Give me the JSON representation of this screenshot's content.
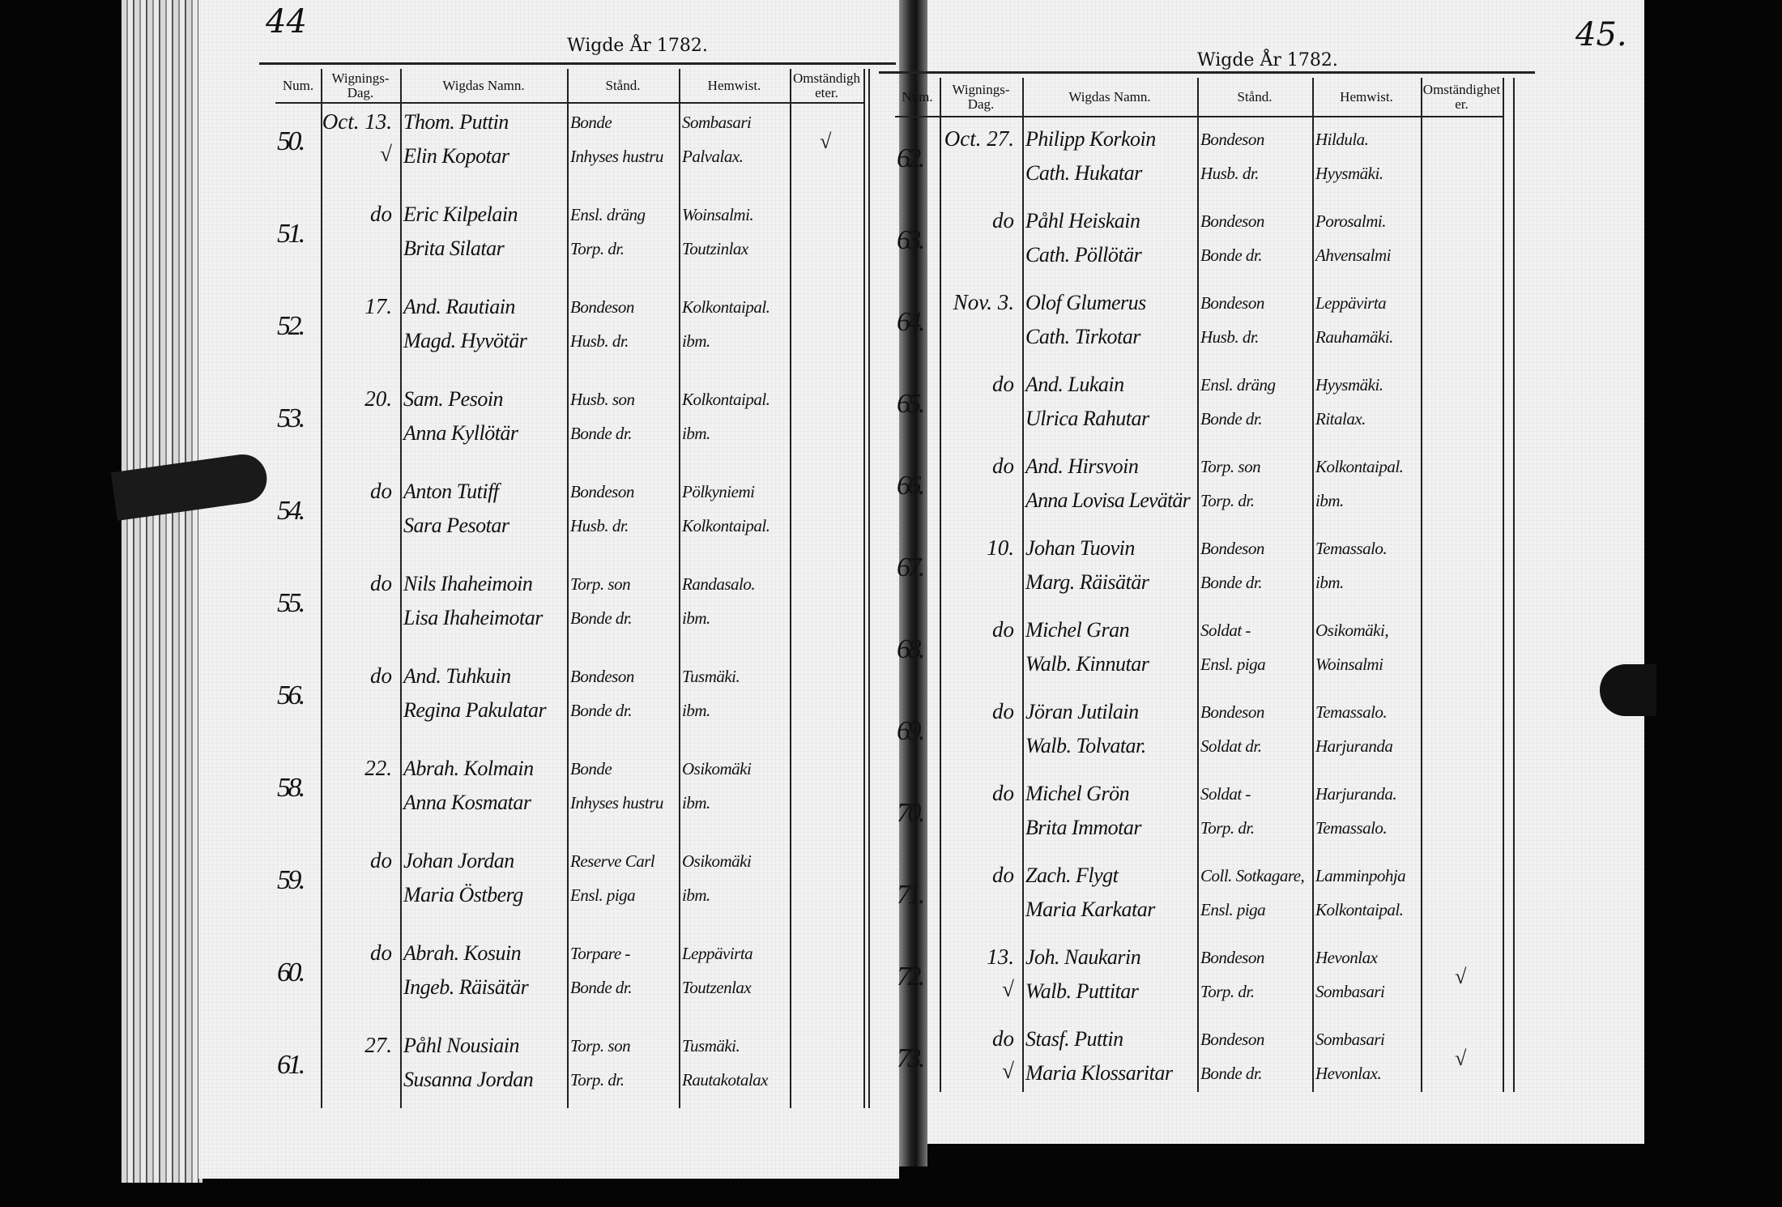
{
  "left_page": {
    "page_number": "44",
    "title": "Wigde År 1782.",
    "headers": {
      "num": "Num.",
      "dag": "Wignings-Dag.",
      "namn": "Wigdas Namn.",
      "stand": "Stånd.",
      "hemwist": "Hemwist.",
      "omst": "Omständigheter."
    },
    "entries": [
      {
        "num": "50.",
        "dag": "Oct. 13.",
        "check": "√",
        "names": [
          "Thom. Puttin",
          "Elin Kopotar"
        ],
        "stand": [
          "Bonde",
          "Inhyses hustru"
        ],
        "hemwist": [
          "Sombasari",
          "Palvalax."
        ],
        "omst": "√"
      },
      {
        "num": "51.",
        "dag": "do",
        "check": "",
        "names": [
          "Eric Kilpelain",
          "Brita Silatar"
        ],
        "stand": [
          "Ensl. dräng",
          "Torp. dr."
        ],
        "hemwist": [
          "Woinsalmi.",
          "Toutzinlax"
        ],
        "omst": ""
      },
      {
        "num": "52.",
        "dag": "17.",
        "check": "",
        "names": [
          "And. Rautiain",
          "Magd. Hyvötär"
        ],
        "stand": [
          "Bondeson",
          "Husb. dr."
        ],
        "hemwist": [
          "Kolkontaipal.",
          "ibm."
        ],
        "omst": ""
      },
      {
        "num": "53.",
        "dag": "20.",
        "check": "",
        "names": [
          "Sam. Pesoin",
          "Anna Kyllötär"
        ],
        "stand": [
          "Husb. son",
          "Bonde dr."
        ],
        "hemwist": [
          "Kolkontaipal.",
          "ibm."
        ],
        "omst": ""
      },
      {
        "num": "54.",
        "dag": "do",
        "check": "",
        "names": [
          "Anton Tutiff",
          "Sara Pesotar"
        ],
        "stand": [
          "Bondeson",
          "Husb. dr."
        ],
        "hemwist": [
          "Pölkyniemi",
          "Kolkontaipal."
        ],
        "omst": ""
      },
      {
        "num": "55.",
        "dag": "do",
        "check": "",
        "names": [
          "Nils Ihaheimoin",
          "Lisa Ihaheimotar"
        ],
        "stand": [
          "Torp. son",
          "Bonde dr."
        ],
        "hemwist": [
          "Randasalo.",
          "ibm."
        ],
        "omst": ""
      },
      {
        "num": "56.",
        "dag": "do",
        "check": "",
        "names": [
          "And. Tuhkuin",
          "Regina Pakulatar"
        ],
        "stand": [
          "Bondeson",
          "Bonde dr."
        ],
        "hemwist": [
          "Tusmäki.",
          "ibm."
        ],
        "omst": ""
      },
      {
        "num": "58.",
        "dag": "22.",
        "check": "",
        "names": [
          "Abrah. Kolmain",
          "Anna Kosmatar"
        ],
        "stand": [
          "Bonde",
          "Inhyses hustru"
        ],
        "hemwist": [
          "Osikomäki",
          "ibm."
        ],
        "omst": ""
      },
      {
        "num": "59.",
        "dag": "do",
        "check": "",
        "names": [
          "Johan Jordan",
          "Maria Östberg"
        ],
        "stand": [
          "Reserve Carl",
          "Ensl. piga"
        ],
        "hemwist": [
          "Osikomäki",
          "ibm."
        ],
        "omst": ""
      },
      {
        "num": "60.",
        "dag": "do",
        "check": "",
        "names": [
          "Abrah. Kosuin",
          "Ingeb. Räisätär"
        ],
        "stand": [
          "Torpare -",
          "Bonde dr."
        ],
        "hemwist": [
          "Leppävirta",
          "Toutzenlax"
        ],
        "omst": ""
      },
      {
        "num": "61.",
        "dag": "27.",
        "check": "",
        "names": [
          "Påhl Nousiain",
          "Susanna Jordan"
        ],
        "stand": [
          "Torp. son",
          "Torp. dr."
        ],
        "hemwist": [
          "Tusmäki.",
          "Rautakotalax"
        ],
        "omst": ""
      }
    ]
  },
  "right_page": {
    "page_number": "45.",
    "title": "Wigde År 1782.",
    "headers": {
      "num": "Num.",
      "dag": "Wignings-Dag.",
      "namn": "Wigdas Namn.",
      "stand": "Stånd.",
      "hemwist": "Hemwist.",
      "omst": "Omständigheter."
    },
    "entries": [
      {
        "num": "62.",
        "dag": "Oct. 27.",
        "check": "",
        "names": [
          "Philipp Korkoin",
          "Cath. Hukatar"
        ],
        "stand": [
          "Bondeson",
          "Husb. dr."
        ],
        "hemwist": [
          "Hildula.",
          "Hyysmäki."
        ],
        "omst": ""
      },
      {
        "num": "63.",
        "dag": "do",
        "check": "",
        "names": [
          "Påhl Heiskain",
          "Cath. Pöllötär"
        ],
        "stand": [
          "Bondeson",
          "Bonde dr."
        ],
        "hemwist": [
          "Porosalmi.",
          "Ahvensalmi"
        ],
        "omst": ""
      },
      {
        "num": "64.",
        "dag": "Nov. 3.",
        "check": "",
        "names": [
          "Olof Glumerus",
          "Cath. Tirkotar"
        ],
        "stand": [
          "Bondeson",
          "Husb. dr."
        ],
        "hemwist": [
          "Leppävirta",
          "Rauhamäki."
        ],
        "omst": ""
      },
      {
        "num": "65.",
        "dag": "do",
        "check": "",
        "names": [
          "And. Lukain",
          "Ulrica Rahutar"
        ],
        "stand": [
          "Ensl. dräng",
          "Bonde dr."
        ],
        "hemwist": [
          "Hyysmäki.",
          "Ritalax."
        ],
        "omst": ""
      },
      {
        "num": "66.",
        "dag": "do",
        "check": "",
        "names": [
          "And. Hirsvoin",
          "Anna Lovisa Levätär"
        ],
        "stand": [
          "Torp. son",
          "Torp. dr."
        ],
        "hemwist": [
          "Kolkontaipal.",
          "ibm."
        ],
        "omst": ""
      },
      {
        "num": "67.",
        "dag": "10.",
        "check": "",
        "names": [
          "Johan Tuovin",
          "Marg. Räisätär"
        ],
        "stand": [
          "Bondeson",
          "Bonde dr."
        ],
        "hemwist": [
          "Temassalo.",
          "ibm."
        ],
        "omst": ""
      },
      {
        "num": "68.",
        "dag": "do",
        "check": "",
        "names": [
          "Michel Gran",
          "Walb. Kinnutar"
        ],
        "stand": [
          "Soldat -",
          "Ensl. piga"
        ],
        "hemwist": [
          "Osikomäki,",
          "Woinsalmi"
        ],
        "omst": ""
      },
      {
        "num": "69.",
        "dag": "do",
        "check": "",
        "names": [
          "Jöran Jutilain",
          "Walb. Tolvatar."
        ],
        "stand": [
          "Bondeson",
          "Soldat dr."
        ],
        "hemwist": [
          "Temassalo.",
          "Harjuranda"
        ],
        "omst": ""
      },
      {
        "num": "70.",
        "dag": "do",
        "check": "",
        "names": [
          "Michel Grön",
          "Brita Immotar"
        ],
        "stand": [
          "Soldat -",
          "Torp. dr."
        ],
        "hemwist": [
          "Harjuranda.",
          "Temassalo."
        ],
        "omst": ""
      },
      {
        "num": "71.",
        "dag": "do",
        "check": "",
        "names": [
          "Zach. Flygt",
          "Maria Karkatar"
        ],
        "stand": [
          "Coll. Sotkagare,",
          "Ensl. piga"
        ],
        "hemwist": [
          "Lamminpohja",
          "Kolkontaipal."
        ],
        "omst": ""
      },
      {
        "num": "72.",
        "dag": "13.",
        "check": "√",
        "names": [
          "Joh. Naukarin",
          "Walb. Puttitar"
        ],
        "stand": [
          "Bondeson",
          "Torp. dr."
        ],
        "hemwist": [
          "Hevonlax",
          "Sombasari"
        ],
        "omst": "√"
      },
      {
        "num": "73.",
        "dag": "do",
        "check": "√",
        "names": [
          "Stasf. Puttin",
          "Maria Klossaritar"
        ],
        "stand": [
          "Bondeson",
          "Bonde dr."
        ],
        "hemwist": [
          "Sombasari",
          "Hevonlax."
        ],
        "omst": "√"
      }
    ]
  }
}
